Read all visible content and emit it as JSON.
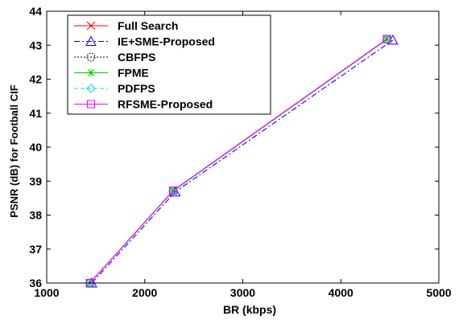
{
  "chart_data": {
    "type": "line",
    "title": "",
    "xlabel": "BR (kbps)",
    "ylabel": "PSNR (dB) for Football CIF",
    "xlim": [
      1000,
      5000
    ],
    "ylim": [
      36,
      44
    ],
    "xticks": [
      "1000",
      "2000",
      "3000",
      "4000",
      "5000"
    ],
    "yticks": [
      "36",
      "37",
      "38",
      "39",
      "40",
      "41",
      "42",
      "43",
      "44"
    ],
    "grid": false,
    "legend_position": "top-left",
    "series": [
      {
        "name": "Full Search",
        "color": "#ff0000",
        "marker": "x",
        "dash": "solid",
        "x": [
          1440,
          2290,
          4470
        ],
        "y": [
          36.0,
          38.72,
          43.18
        ]
      },
      {
        "name": "IE+SME-Proposed",
        "color": "#0000ff",
        "marker": "triangle",
        "dash": "dashdot",
        "x": [
          1460,
          2310,
          4530
        ],
        "y": [
          36.0,
          38.68,
          43.15
        ]
      },
      {
        "name": "CBFPS",
        "color": "#000000",
        "marker": "circle",
        "dash": "dotted",
        "x": [
          1440,
          2290,
          4470
        ],
        "y": [
          36.0,
          38.71,
          43.17
        ]
      },
      {
        "name": "FPME",
        "color": "#00cc00",
        "marker": "star",
        "dash": "solid",
        "x": [
          1440,
          2290,
          4470
        ],
        "y": [
          36.0,
          38.71,
          43.17
        ]
      },
      {
        "name": "PDFPS",
        "color": "#00e5e5",
        "marker": "diamond",
        "dash": "dashed",
        "x": [
          1440,
          2290,
          4470
        ],
        "y": [
          36.0,
          38.71,
          43.17
        ]
      },
      {
        "name": "RFSME-Proposed",
        "color": "#ff00ff",
        "marker": "square",
        "dash": "solid",
        "x": [
          1440,
          2290,
          4470
        ],
        "y": [
          36.0,
          38.72,
          43.18
        ]
      }
    ]
  }
}
